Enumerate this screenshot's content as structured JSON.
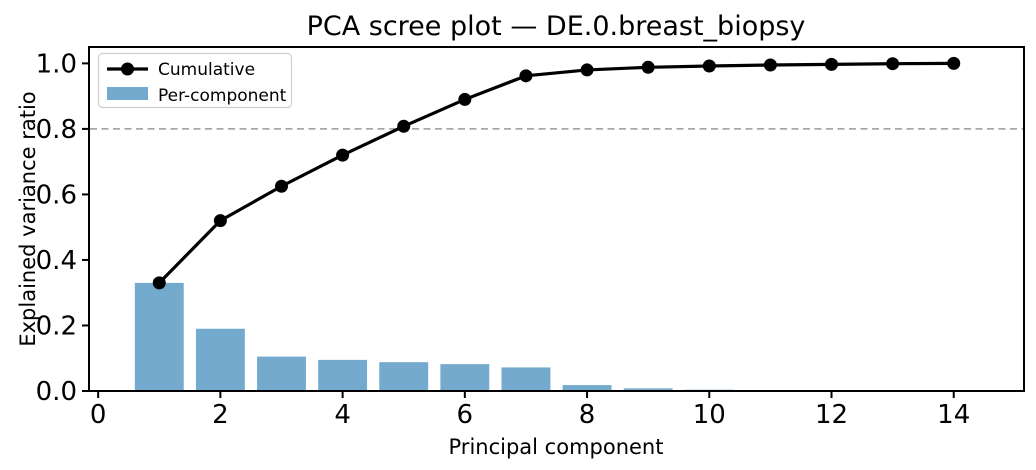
{
  "figure": {
    "background": "#ffffff"
  },
  "chart_data": {
    "type": "combo-bar-line",
    "title": "PCA scree plot — DE.0.breast_biopsy",
    "xlabel": "Principal component",
    "ylabel": "Explained variance ratio",
    "x": [
      1,
      2,
      3,
      4,
      5,
      6,
      7,
      8,
      9,
      10,
      11,
      12,
      13,
      14
    ],
    "series": [
      {
        "name": "Cumulative",
        "kind": "line",
        "color": "#000000",
        "marker": "circle",
        "values": [
          0.33,
          0.52,
          0.625,
          0.72,
          0.808,
          0.89,
          0.962,
          0.98,
          0.988,
          0.992,
          0.995,
          0.997,
          0.999,
          1.0
        ]
      },
      {
        "name": "Per-component",
        "kind": "bar",
        "color": "#74aacd",
        "values": [
          0.33,
          0.19,
          0.105,
          0.095,
          0.088,
          0.082,
          0.072,
          0.018,
          0.008,
          0.004,
          0.003,
          0.002,
          0.002,
          0.001
        ]
      }
    ],
    "threshold_line": {
      "y": 0.8,
      "style": "dashed",
      "color": "#999999"
    },
    "xlim": [
      -0.15,
      15.15
    ],
    "ylim": [
      0.0,
      1.05
    ],
    "xticks": [
      0,
      2,
      4,
      6,
      8,
      10,
      12,
      14
    ],
    "yticks": [
      0.0,
      0.2,
      0.4,
      0.6,
      0.8,
      1.0
    ],
    "ytick_decimals": 1,
    "bar_width": 0.8,
    "grid": false,
    "legend": {
      "position": "upper-left"
    }
  }
}
